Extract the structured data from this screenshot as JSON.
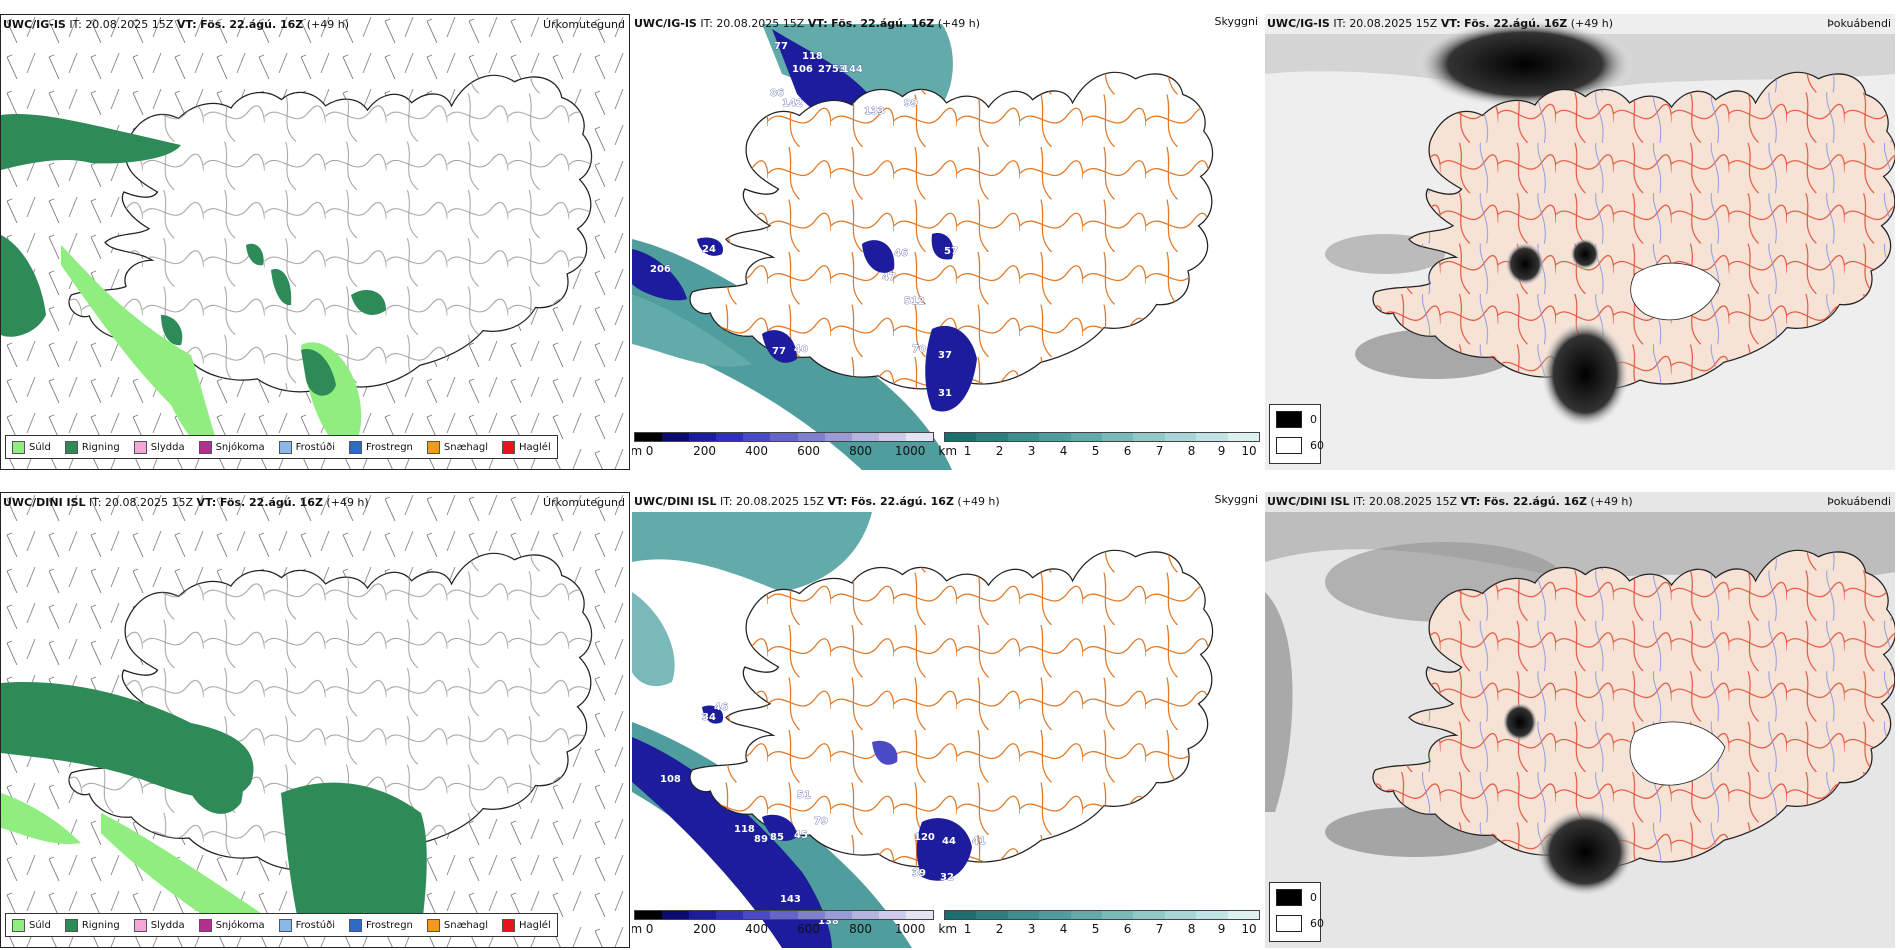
{
  "panels": [
    {
      "model": "UWC/IG-IS",
      "header_rest": " IT: 20.08.2025 15Z ",
      "vt_label": "VT:",
      "vt_value": "Fös. 22.ágú. 16Z",
      "lead": " (+49 h)",
      "ptype": "Úrkomutegund"
    },
    {
      "model": "UWC/IG-IS",
      "header_rest": " IT: 20.08.2025 15Z ",
      "vt_label": "VT:",
      "vt_value": "Fös. 22.ágú. 16Z",
      "lead": " (+49 h)",
      "ptype": "Skyggni"
    },
    {
      "model": "UWC/IG-IS",
      "header_rest": " IT: 20.08.2025 15Z ",
      "vt_label": "VT:",
      "vt_value": "Fös. 22.ágú. 16Z",
      "lead": " (+49 h)",
      "ptype": "Þokuábendi"
    },
    {
      "model": "UWC/DINI ISL",
      "header_rest": " IT: 20.08.2025 15Z ",
      "vt_label": "VT:",
      "vt_value": "Fös. 22.ágú. 16Z",
      "lead": " (+49 h)",
      "ptype": "Úrkomutegund"
    },
    {
      "model": "UWC/DINI ISL",
      "header_rest": " IT: 20.08.2025 15Z ",
      "vt_label": "VT:",
      "vt_value": "Fös. 22.ágú. 16Z",
      "lead": " (+49 h)",
      "ptype": "Skyggni"
    },
    {
      "model": "UWC/DINI ISL",
      "header_rest": " IT: 20.08.2025 15Z ",
      "vt_label": "VT:",
      "vt_value": "Fös. 22.ágú. 16Z",
      "lead": " (+49 h)",
      "ptype": "Þokuábendi"
    }
  ],
  "precip_legend": [
    {
      "label": "Súld",
      "color": "#90ee80"
    },
    {
      "label": "Rigning",
      "color": "#2e8b57"
    },
    {
      "label": "Slydda",
      "color": "#f4a6d7"
    },
    {
      "label": "Snjókoma",
      "color": "#b0308f"
    },
    {
      "label": "Frostúði",
      "color": "#8ab8e8"
    },
    {
      "label": "Frostregn",
      "color": "#2b6cc4"
    },
    {
      "label": "Snæhagl",
      "color": "#f09a20"
    },
    {
      "label": "Haglél",
      "color": "#e8141c"
    }
  ],
  "ceiling_bar": {
    "unit": "m",
    "ticks": [
      "0",
      "200",
      "400",
      "600",
      "800",
      "1000"
    ],
    "colors": [
      "#000000",
      "#0b0b6e",
      "#1c1c9c",
      "#2f2fb8",
      "#4a4ac4",
      "#6565c8",
      "#8080cc",
      "#9a9ad6",
      "#b4b4e0",
      "#ccccea",
      "#e4e4f4"
    ]
  },
  "visibility_bar": {
    "unit": "km",
    "ticks": [
      "1",
      "2",
      "3",
      "4",
      "5",
      "6",
      "7",
      "8",
      "9",
      "10"
    ],
    "colors": [
      "#1d6f6f",
      "#2c7f7f",
      "#3c8f8f",
      "#4f9d9d",
      "#63abab",
      "#79b9b9",
      "#90c7c7",
      "#a8d5d5",
      "#c1e3e3",
      "#dbf1f1"
    ]
  },
  "fog_legend": {
    "low": "0",
    "high": "60"
  },
  "labels_top": [
    "118",
    "77",
    "106",
    "2753",
    "144",
    "86",
    "142",
    "133",
    "99",
    "24",
    "206",
    "46",
    "57",
    "47",
    "512",
    "77",
    "40",
    "70",
    "37",
    "31"
  ],
  "labels_bottom": [
    "34",
    "46",
    "108",
    "51",
    "118",
    "89",
    "85",
    "45",
    "79",
    "120",
    "44",
    "41",
    "39",
    "32",
    "143",
    "138"
  ]
}
